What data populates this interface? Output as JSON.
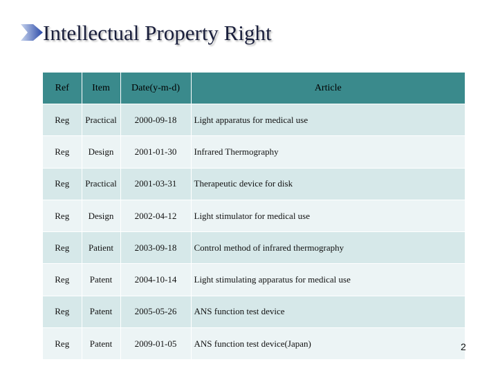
{
  "title": "Intellectual Property Right",
  "icon": "title-arrow-icon",
  "accent_color": "#3a8a8c",
  "table": {
    "headers": [
      "Ref",
      "Item",
      "Date(y-m-d)",
      "Article"
    ],
    "rows": [
      [
        "Reg",
        "Practical",
        "2000-09-18",
        "Light apparatus for medical use"
      ],
      [
        "Reg",
        "Design",
        "2001-01-30",
        "Infrared Thermography"
      ],
      [
        "Reg",
        "Practical",
        "2001-03-31",
        "Therapeutic device for disk"
      ],
      [
        "Reg",
        "Design",
        "2002-04-12",
        "Light stimulator for medical use"
      ],
      [
        "Reg",
        "Patient",
        "2003-09-18",
        "Control method of infrared thermography"
      ],
      [
        "Reg",
        "Patent",
        "2004-10-14",
        "Light stimulating apparatus for medical use"
      ],
      [
        "Reg",
        "Patent",
        "2005-05-26",
        "ANS function test device"
      ],
      [
        "Reg",
        "Patent",
        "2009-01-05",
        "ANS function test device(Japan)"
      ]
    ]
  },
  "page_number": "2"
}
